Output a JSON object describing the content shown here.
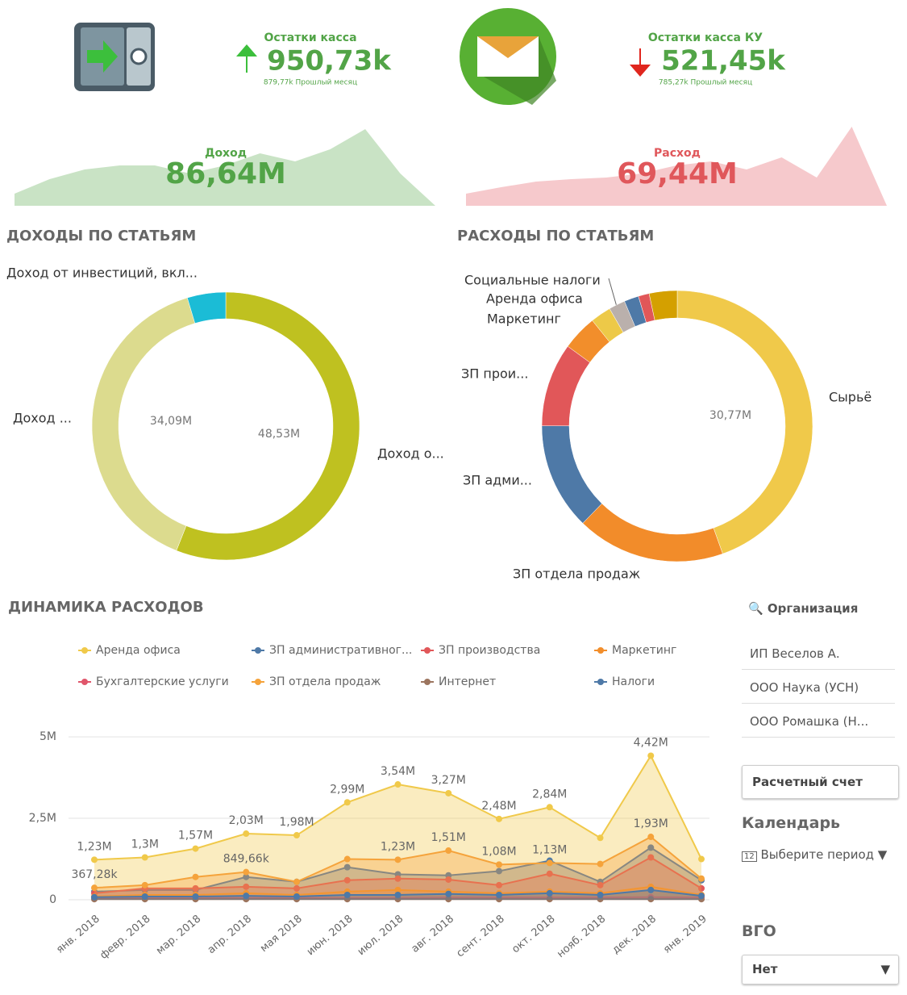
{
  "header": {
    "kpis": [
      {
        "title": "Остатки касса",
        "value": "950,73k",
        "comparison": "879,77k Прошлый месяц"
      },
      {
        "title": "Остатки касса КУ",
        "value": "521,45k",
        "comparison": "785,27k Прошлый месяц"
      }
    ]
  },
  "chart_data": [
    {
      "type": "area",
      "title": "Доход",
      "value_label": "86,64M",
      "values": [
        1.5,
        3.3,
        4.5,
        5,
        5,
        4,
        5,
        6.5,
        5.5,
        7,
        9.5,
        4,
        0
      ],
      "ylim": [
        0,
        10
      ],
      "color": "#c9e3c5",
      "text_color": "#52a447"
    },
    {
      "type": "area",
      "title": "Расход",
      "value_label": "69,44M",
      "values": [
        1.5,
        2.3,
        3,
        3.3,
        3.5,
        4,
        5,
        5.5,
        4.5,
        6,
        3.5,
        9.8,
        0
      ],
      "ylim": [
        0,
        10
      ],
      "color": "#f6c9cc",
      "text_color": "#e0575b"
    },
    {
      "type": "pie",
      "title": "ДОХОДЫ ПО СТАТЬЯМ",
      "categories": [
        "Доход о...",
        "Доход ...",
        "Доход от инвестиций, вкл..."
      ],
      "values": [
        48.53,
        34.09,
        4.02
      ],
      "value_labels": [
        "48,53M",
        "34,09M",
        null
      ],
      "colors": [
        "#bfc120",
        "#dcdb8e",
        "#1bbcd6"
      ]
    },
    {
      "type": "pie",
      "title": "РАСХОДЫ ПО СТАТЬЯМ",
      "categories": [
        "Сырьё",
        "ЗП отдела продаж",
        "ЗП адми...",
        "ЗП прои...",
        "Маркетинг",
        "Аренда офиса",
        "Социальные налоги",
        null,
        null,
        null
      ],
      "values": [
        30.77,
        12.25,
        8.8,
        6.9,
        2.9,
        1.7,
        1.35,
        1.2,
        0.9,
        2.3
      ],
      "value_labels": [
        "30,77M",
        null,
        null,
        null,
        null,
        null,
        null,
        null,
        null,
        null
      ],
      "colors": [
        "#f0c94a",
        "#f28c2a",
        "#4e79a7",
        "#e15759",
        "#f28e2b",
        "#edc948",
        "#bab0ac",
        "#4e79a7",
        "#e15759",
        "#d4a000"
      ]
    },
    {
      "type": "multi_area",
      "title": "ДИНАМИКА РАСХОДОВ",
      "categories": [
        "янв. 2018",
        "февр. 2018",
        "мар. 2018",
        "апр. 2018",
        "мая 2018",
        "июн. 2018",
        "июл. 2018",
        "авг. 2018",
        "сент. 2018",
        "окт. 2018",
        "нояб. 2018",
        "дек. 2018",
        "янв. 2019"
      ],
      "ylim": [
        0,
        5.2
      ],
      "yticks": [
        0,
        {
          "value": 2.5,
          "label": "2,5M"
        },
        {
          "value": 5,
          "label": "5M"
        }
      ],
      "grid": true,
      "series": [
        {
          "name": "Аренда офиса",
          "color": "#f0c94a",
          "values": [
            1.23,
            1.3,
            1.57,
            2.03,
            1.98,
            2.99,
            3.54,
            3.27,
            2.48,
            2.84,
            1.9,
            4.42,
            1.25
          ],
          "value_labels": [
            "1,23M",
            "1,3M",
            "1,57M",
            "2,03M",
            "1,98M",
            "2,99M",
            "3,54M",
            "3,27M",
            "2,48M",
            "2,84M",
            null,
            "4,42M",
            null
          ]
        },
        {
          "name": "ЗП административног...",
          "color": "#4e79a7",
          "values": [
            0.25,
            0.3,
            0.3,
            0.7,
            0.55,
            1.0,
            0.78,
            0.75,
            0.88,
            1.2,
            0.55,
            1.6,
            0.6
          ]
        },
        {
          "name": "ЗП производства",
          "color": "#e15759",
          "values": [
            0.2,
            0.35,
            0.35,
            0.4,
            0.35,
            0.6,
            0.65,
            0.62,
            0.45,
            0.8,
            0.45,
            1.3,
            0.35
          ]
        },
        {
          "name": "Маркетинг",
          "color": "#f28e2b",
          "values": [
            0.1,
            0.15,
            0.15,
            0.2,
            0.15,
            0.25,
            0.3,
            0.25,
            0.2,
            0.25,
            0.2,
            0.4,
            0.15
          ]
        },
        {
          "name": "Бухгалтерские услуги",
          "color": "#e0566b",
          "values": [
            0.05,
            0.05,
            0.05,
            0.06,
            0.06,
            0.06,
            0.06,
            0.07,
            0.07,
            0.07,
            0.07,
            0.08,
            0.07
          ]
        },
        {
          "name": "ЗП отдела продаж",
          "color": "#f5a33b",
          "values": [
            0.36728,
            0.45,
            0.7,
            0.84966,
            0.55,
            1.25,
            1.23,
            1.51,
            1.08,
            1.13,
            1.1,
            1.93,
            0.65
          ],
          "value_labels": [
            "367,28k",
            null,
            null,
            "849,66k",
            null,
            null,
            "1,23M",
            "1,51M",
            "1,08M",
            "1,13M",
            null,
            "1,93M",
            null
          ]
        },
        {
          "name": "Интернет",
          "color": "#9c755f",
          "values": [
            0.02,
            0.02,
            0.02,
            0.02,
            0.02,
            0.02,
            0.02,
            0.02,
            0.02,
            0.02,
            0.02,
            0.02,
            0.02
          ]
        },
        {
          "name": "Налоги",
          "color": "#4e79a7",
          "values": [
            0.08,
            0.1,
            0.1,
            0.12,
            0.1,
            0.15,
            0.15,
            0.18,
            0.15,
            0.2,
            0.15,
            0.3,
            0.12
          ]
        }
      ]
    }
  ],
  "sidebar": {
    "filter_title": "Организация",
    "filter_items": [
      "ИП Веселов А.",
      "ООО Наука (УСН)",
      "ООО Ромашка (Н..."
    ],
    "account_button": "Расчетный счет",
    "calendar_title": "Календарь",
    "calendar_placeholder": "Выберите период",
    "vgo_title": "ВГО",
    "vgo_value": "Нет"
  }
}
